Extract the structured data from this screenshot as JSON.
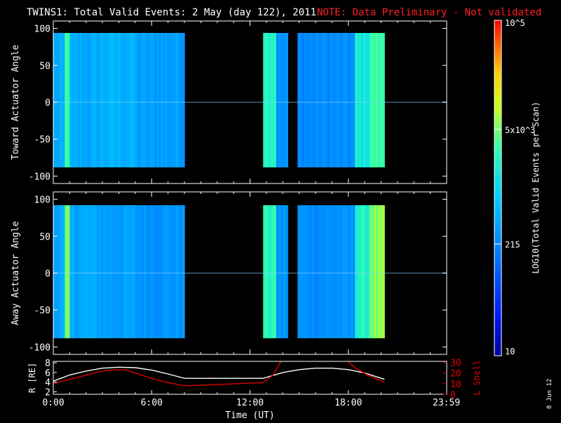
{
  "header": {
    "title": "TWINS1: Total Valid Events:  2 May (day 122), 2011",
    "note": "NOTE: Data Preliminary - Not validated"
  },
  "colors": {
    "background": "#000000",
    "axes": "#ffffff",
    "note": "#ff2020",
    "lshell": "#dd0000",
    "r_line": "#ffffff"
  },
  "colorbar": {
    "label": "LOG10(Total Valid Events per Scan)",
    "ticks": [
      {
        "label": "10",
        "value": 10
      },
      {
        "label": "215",
        "value": 215
      },
      {
        "label": "5x10^3",
        "value": 5000
      },
      {
        "label": "10^5",
        "value": 100000
      }
    ],
    "scale": "log",
    "range": [
      10,
      100000
    ],
    "colormap": "rainbow (blue-cyan-green-yellow-red)"
  },
  "side_stamp": "8 Jun 12",
  "chart_data": [
    {
      "type": "heatmap",
      "ylabel": "Toward Actuator Angle",
      "ylim": [
        -110,
        110
      ],
      "yticks": [
        -100,
        -50,
        0,
        50,
        100
      ],
      "xlim_hours": [
        0,
        24
      ],
      "data_bins": [
        {
          "t0": 0.0,
          "t1": 0.7,
          "level": 0.4
        },
        {
          "t0": 0.7,
          "t1": 1.0,
          "level": 0.63
        },
        {
          "t0": 1.0,
          "t1": 2.8,
          "level": 0.4
        },
        {
          "t0": 2.8,
          "t1": 5.0,
          "level": 0.42
        },
        {
          "t0": 5.0,
          "t1": 8.0,
          "level": 0.38
        },
        {
          "t0": 12.8,
          "t1": 13.6,
          "level": 0.6
        },
        {
          "t0": 13.6,
          "t1": 14.3,
          "level": 0.35
        },
        {
          "t0": 14.9,
          "t1": 18.4,
          "level": 0.34
        },
        {
          "t0": 18.4,
          "t1": 19.3,
          "level": 0.55
        },
        {
          "t0": 19.3,
          "t1": 20.2,
          "level": 0.62
        }
      ],
      "gaps": [
        [
          8.0,
          12.8
        ],
        [
          14.3,
          14.9
        ],
        [
          20.2,
          24.0
        ]
      ]
    },
    {
      "type": "heatmap",
      "ylabel": "Away Actuator Angle",
      "ylim": [
        -110,
        110
      ],
      "yticks": [
        -100,
        -50,
        0,
        50,
        100
      ],
      "xlim_hours": [
        0,
        24
      ],
      "data_bins": [
        {
          "t0": 0.0,
          "t1": 0.7,
          "level": 0.4
        },
        {
          "t0": 0.7,
          "t1": 1.0,
          "level": 0.66
        },
        {
          "t0": 1.0,
          "t1": 2.8,
          "level": 0.4
        },
        {
          "t0": 2.8,
          "t1": 5.0,
          "level": 0.38
        },
        {
          "t0": 5.0,
          "t1": 8.0,
          "level": 0.36
        },
        {
          "t0": 12.8,
          "t1": 13.6,
          "level": 0.6
        },
        {
          "t0": 13.6,
          "t1": 14.3,
          "level": 0.36
        },
        {
          "t0": 14.9,
          "t1": 18.4,
          "level": 0.35
        },
        {
          "t0": 18.4,
          "t1": 19.3,
          "level": 0.58
        },
        {
          "t0": 19.3,
          "t1": 20.2,
          "level": 0.68
        }
      ],
      "gaps": [
        [
          8.0,
          12.8
        ],
        [
          14.3,
          14.9
        ],
        [
          20.2,
          24.0
        ]
      ]
    },
    {
      "type": "line",
      "xlabel": "Time (UT)",
      "xticks": [
        {
          "label": "0:00",
          "hour": 0
        },
        {
          "label": "6:00",
          "hour": 6
        },
        {
          "label": "12:00",
          "hour": 12
        },
        {
          "label": "18:00",
          "hour": 18
        },
        {
          "label": "23:59",
          "hour": 23.983
        }
      ],
      "left_axis": {
        "label": "R [RE]",
        "ticks": [
          2,
          4,
          6,
          8
        ],
        "ylim": [
          1.5,
          8.3
        ]
      },
      "right_axis": {
        "label": "L Shell",
        "ticks": [
          0,
          10,
          20,
          30
        ],
        "ylim": [
          0,
          31
        ]
      },
      "series": [
        {
          "axis": "left",
          "x": [
            0,
            1,
            2,
            3,
            4,
            5,
            6,
            7,
            8,
            9,
            10,
            11,
            12,
            12.8,
            14,
            15,
            16,
            17,
            18,
            19,
            20.2
          ],
          "y": [
            4.2,
            5.5,
            6.3,
            6.9,
            7.1,
            7.0,
            6.5,
            5.7,
            4.8,
            4.8,
            4.8,
            4.8,
            4.8,
            4.8,
            6.0,
            6.6,
            6.9,
            6.9,
            6.6,
            5.9,
            4.6
          ]
        },
        {
          "axis": "right",
          "x": [
            0,
            1,
            2,
            3,
            3.8,
            4.4,
            5,
            6,
            7,
            8,
            12.8,
            13.4,
            14.0,
            17.8,
            18.4,
            19.2,
            20.2
          ],
          "y": [
            10,
            14,
            18,
            22,
            23,
            23,
            20,
            15,
            11,
            8,
            11,
            18,
            34,
            34,
            25,
            18,
            11
          ]
        }
      ]
    }
  ]
}
